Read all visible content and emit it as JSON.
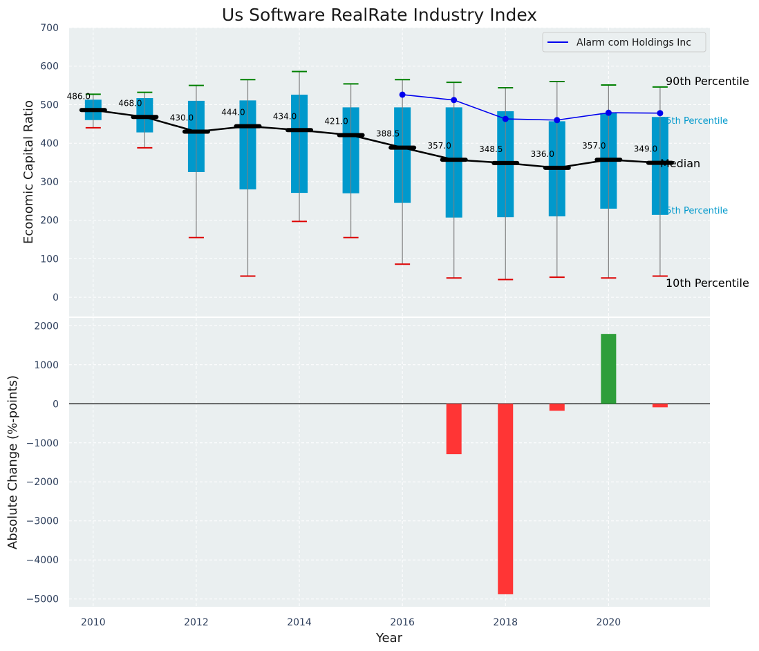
{
  "chart_data": [
    {
      "type": "box",
      "title": "Us Software RealRate Industry Index",
      "xlabel": "",
      "ylabel": "Economic Capital Ratio",
      "ylim": [
        -50,
        700
      ],
      "yticks": [
        0,
        100,
        200,
        300,
        400,
        500,
        600,
        700
      ],
      "xticks": [
        2010,
        2012,
        2014,
        2016,
        2018,
        2020
      ],
      "grid": true,
      "legend_position": "top-right",
      "years": [
        2010,
        2011,
        2012,
        2013,
        2014,
        2015,
        2016,
        2017,
        2018,
        2019,
        2020,
        2021
      ],
      "p10": [
        440,
        388,
        155,
        55,
        197,
        155,
        86,
        50,
        46,
        52,
        50,
        55
      ],
      "p25": [
        460,
        428,
        325,
        280,
        271,
        270,
        245,
        207,
        208,
        210,
        230,
        214
      ],
      "median": [
        486,
        468,
        430,
        444,
        434,
        421,
        388.5,
        357,
        348.5,
        336,
        357,
        349
      ],
      "p75": [
        513,
        517,
        510,
        511,
        526,
        493,
        493,
        493,
        483,
        457,
        478,
        468
      ],
      "p90": [
        527,
        532,
        550,
        565,
        586,
        554,
        565,
        558,
        544,
        560,
        551,
        546
      ],
      "median_labels": [
        "486.0",
        "468.0",
        "430.0",
        "444.0",
        "434.0",
        "421.0",
        "388.5",
        "357.0",
        "348.5",
        "336.0",
        "357.0",
        "349.0"
      ],
      "series": [
        {
          "name": "Alarm com Holdings Inc",
          "x": [
            2016,
            2017,
            2018,
            2019,
            2020,
            2021
          ],
          "values": [
            526,
            512,
            463,
            460,
            479,
            478
          ],
          "color": "#0000ee"
        }
      ],
      "annotations": {
        "p90": "90th Percentile",
        "p75": "75th Percentile",
        "median": "Median",
        "p25": "25th Percentile",
        "p10": "10th Percentile"
      },
      "colors": {
        "box": "#0099cc",
        "median": "#000000",
        "p90_cap": "#008000",
        "p10_cap": "#dd0000",
        "whisker": "#808080"
      }
    },
    {
      "type": "bar",
      "xlabel": "Year",
      "ylabel": "Absolute Change (%-points)",
      "ylim": [
        -5200,
        2200
      ],
      "yticks": [
        -5000,
        -4000,
        -3000,
        -2000,
        -1000,
        0,
        1000,
        2000
      ],
      "xticks": [
        2010,
        2012,
        2014,
        2016,
        2018,
        2020
      ],
      "grid": true,
      "x": [
        2017,
        2018,
        2019,
        2020,
        2021
      ],
      "values": [
        -1290,
        -4880,
        -180,
        1790,
        -90
      ],
      "colors": {
        "positive": "#2e9e3a",
        "negative": "#ff3535"
      }
    }
  ]
}
